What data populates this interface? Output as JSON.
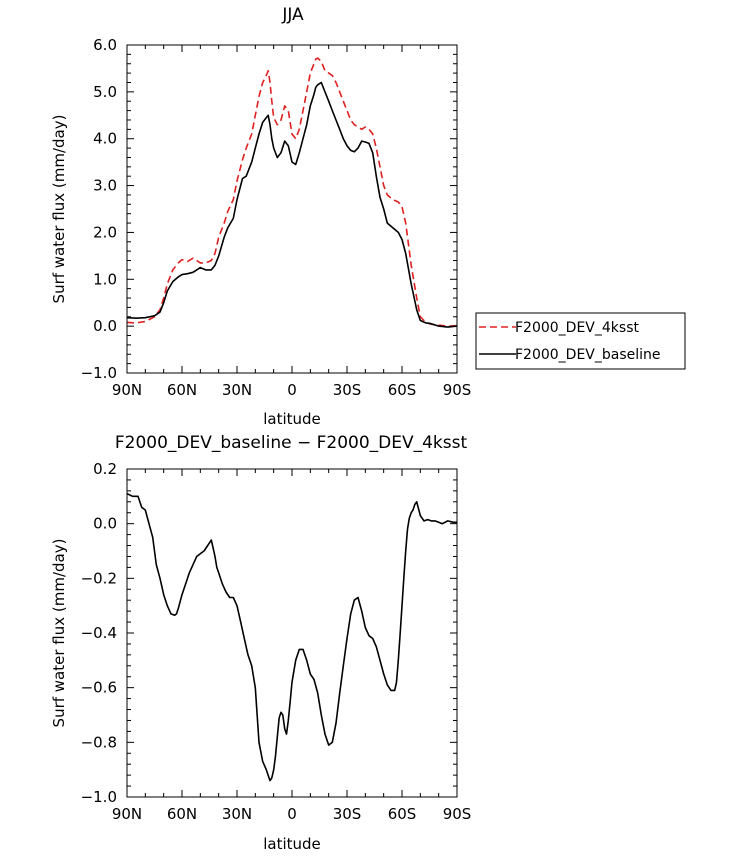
{
  "chart_data": [
    {
      "type": "line",
      "title": "JJA",
      "xlabel": "latitude",
      "ylabel": "Surf water flux (mm/day)",
      "xlim": [
        90,
        -90
      ],
      "ylim": [
        -1.0,
        6.0
      ],
      "x_tick_values": [
        90,
        60,
        30,
        0,
        -30,
        -60,
        -90
      ],
      "x_tick_labels": [
        "90N",
        "60N",
        "30N",
        "0",
        "30S",
        "60S",
        "90S"
      ],
      "y_tick_values": [
        -1.0,
        0.0,
        1.0,
        2.0,
        3.0,
        4.0,
        5.0,
        6.0
      ],
      "y_tick_labels": [
        "−1.0",
        "0.0",
        "1.0",
        "2.0",
        "3.0",
        "4.0",
        "5.0",
        "6.0"
      ],
      "legend_position": "right-outside",
      "series": [
        {
          "name": "F2000_DEV_4ksst",
          "color": "#e02020",
          "dash": "dashed",
          "x": [
            90,
            85,
            80,
            75,
            72,
            70,
            68,
            65,
            62,
            60,
            57,
            54,
            52,
            50,
            47,
            44,
            42,
            40,
            37,
            35,
            32,
            30,
            27,
            25,
            22,
            20,
            18,
            16,
            14,
            13,
            12,
            11,
            10,
            8,
            6,
            4,
            2,
            0,
            -2,
            -4,
            -6,
            -8,
            -10,
            -12,
            -13,
            -14,
            -16,
            -18,
            -20,
            -22,
            -24,
            -26,
            -28,
            -30,
            -32,
            -34,
            -36,
            -38,
            -40,
            -42,
            -44,
            -46,
            -48,
            -50,
            -52,
            -55,
            -58,
            -60,
            -62,
            -65,
            -68,
            -70,
            -73,
            -75,
            -80,
            -85,
            -90
          ],
          "values": [
            0.08,
            0.07,
            0.1,
            0.2,
            0.35,
            0.6,
            0.9,
            1.2,
            1.35,
            1.42,
            1.38,
            1.45,
            1.4,
            1.35,
            1.35,
            1.4,
            1.55,
            1.9,
            2.2,
            2.45,
            2.7,
            3.1,
            3.55,
            3.8,
            4.1,
            4.5,
            4.9,
            5.2,
            5.35,
            5.45,
            5.2,
            4.8,
            4.45,
            4.3,
            4.4,
            4.7,
            4.6,
            4.1,
            4.0,
            4.2,
            4.6,
            5.0,
            5.4,
            5.6,
            5.7,
            5.72,
            5.65,
            5.45,
            5.4,
            5.35,
            5.2,
            5.0,
            4.8,
            4.6,
            4.4,
            4.3,
            4.25,
            4.2,
            4.25,
            4.2,
            4.1,
            3.8,
            3.4,
            3.0,
            2.8,
            2.7,
            2.65,
            2.55,
            2.2,
            1.3,
            0.6,
            0.2,
            0.08,
            0.05,
            0.02,
            0.0,
            0.01
          ]
        },
        {
          "name": "F2000_DEV_baseline",
          "color": "#000000",
          "dash": "solid",
          "x": [
            90,
            85,
            80,
            75,
            72,
            70,
            68,
            65,
            62,
            60,
            57,
            54,
            52,
            50,
            47,
            44,
            42,
            40,
            37,
            35,
            32,
            30,
            27,
            25,
            22,
            20,
            18,
            16,
            14,
            13,
            12,
            11,
            10,
            8,
            6,
            4,
            2,
            0,
            -2,
            -4,
            -6,
            -8,
            -10,
            -12,
            -13,
            -14,
            -16,
            -18,
            -20,
            -22,
            -24,
            -26,
            -28,
            -30,
            -32,
            -34,
            -36,
            -38,
            -40,
            -42,
            -44,
            -46,
            -48,
            -50,
            -52,
            -55,
            -58,
            -60,
            -62,
            -65,
            -68,
            -70,
            -73,
            -75,
            -80,
            -85,
            -90
          ],
          "values": [
            0.18,
            0.17,
            0.18,
            0.22,
            0.3,
            0.5,
            0.75,
            0.95,
            1.05,
            1.1,
            1.12,
            1.15,
            1.2,
            1.25,
            1.2,
            1.2,
            1.3,
            1.5,
            1.9,
            2.1,
            2.3,
            2.7,
            3.15,
            3.2,
            3.5,
            3.8,
            4.1,
            4.35,
            4.45,
            4.5,
            4.3,
            4.0,
            3.8,
            3.6,
            3.7,
            3.95,
            3.85,
            3.5,
            3.45,
            3.7,
            4.0,
            4.3,
            4.7,
            4.95,
            5.1,
            5.15,
            5.2,
            5.0,
            4.8,
            4.6,
            4.4,
            4.2,
            4.0,
            3.85,
            3.75,
            3.72,
            3.8,
            3.95,
            3.93,
            3.9,
            3.7,
            3.2,
            2.75,
            2.5,
            2.2,
            2.1,
            2.0,
            1.85,
            1.55,
            0.9,
            0.35,
            0.12,
            0.07,
            0.06,
            0.0,
            -0.02,
            0.0
          ]
        }
      ]
    },
    {
      "type": "line",
      "title": "F2000_DEV_baseline − F2000_DEV_4ksst",
      "xlabel": "latitude",
      "ylabel": "Surf water flux (mm/day)",
      "xlim": [
        90,
        -90
      ],
      "ylim": [
        -1.0,
        0.2
      ],
      "x_tick_values": [
        90,
        60,
        30,
        0,
        -30,
        -60,
        -90
      ],
      "x_tick_labels": [
        "90N",
        "60N",
        "30N",
        "0",
        "30S",
        "60S",
        "90S"
      ],
      "y_tick_values": [
        -1.0,
        -0.8,
        -0.6,
        -0.4,
        -0.2,
        0.0,
        0.2
      ],
      "y_tick_labels": [
        "−1.0",
        "−0.8",
        "−0.6",
        "−0.4",
        "−0.2",
        "0.0",
        "0.2"
      ],
      "series": [
        {
          "name": "F2000_DEV_baseline − F2000_DEV_4ksst",
          "color": "#000000",
          "dash": "solid",
          "x": [
            90,
            87,
            84,
            82,
            80,
            78,
            76,
            74,
            72,
            70,
            68,
            66,
            64,
            63,
            62,
            60,
            58,
            56,
            54,
            52,
            50,
            48,
            46,
            45,
            44,
            43,
            42,
            41,
            40,
            38,
            36,
            34,
            32,
            30,
            28,
            26,
            24,
            22,
            20,
            18,
            16,
            14,
            12,
            11,
            10,
            9,
            8,
            7,
            6,
            5,
            4,
            3,
            2,
            1,
            0,
            -2,
            -4,
            -6,
            -8,
            -10,
            -12,
            -14,
            -16,
            -18,
            -20,
            -22,
            -24,
            -26,
            -28,
            -30,
            -32,
            -34,
            -36,
            -38,
            -40,
            -42,
            -44,
            -46,
            -48,
            -50,
            -52,
            -54,
            -56,
            -57,
            -58,
            -59,
            -60,
            -61,
            -62,
            -63,
            -64,
            -65,
            -66,
            -67,
            -68,
            -70,
            -72,
            -74,
            -76,
            -78,
            -80,
            -82,
            -85,
            -88,
            -90
          ],
          "values": [
            0.11,
            0.1,
            0.1,
            0.06,
            0.05,
            0.0,
            -0.05,
            -0.15,
            -0.2,
            -0.26,
            -0.3,
            -0.33,
            -0.335,
            -0.33,
            -0.31,
            -0.26,
            -0.22,
            -0.18,
            -0.15,
            -0.12,
            -0.11,
            -0.1,
            -0.08,
            -0.07,
            -0.06,
            -0.09,
            -0.12,
            -0.16,
            -0.18,
            -0.22,
            -0.25,
            -0.27,
            -0.27,
            -0.3,
            -0.36,
            -0.42,
            -0.48,
            -0.52,
            -0.6,
            -0.8,
            -0.87,
            -0.9,
            -0.94,
            -0.93,
            -0.9,
            -0.85,
            -0.78,
            -0.71,
            -0.69,
            -0.7,
            -0.75,
            -0.77,
            -0.72,
            -0.65,
            -0.58,
            -0.5,
            -0.46,
            -0.46,
            -0.5,
            -0.55,
            -0.57,
            -0.62,
            -0.7,
            -0.77,
            -0.81,
            -0.8,
            -0.73,
            -0.62,
            -0.52,
            -0.42,
            -0.33,
            -0.28,
            -0.27,
            -0.32,
            -0.38,
            -0.41,
            -0.42,
            -0.45,
            -0.5,
            -0.55,
            -0.59,
            -0.61,
            -0.61,
            -0.58,
            -0.5,
            -0.4,
            -0.3,
            -0.2,
            -0.1,
            -0.02,
            0.02,
            0.04,
            0.05,
            0.07,
            0.08,
            0.03,
            0.01,
            0.015,
            0.01,
            0.01,
            0.005,
            0.0,
            0.01,
            0.005,
            0.005
          ]
        }
      ]
    }
  ]
}
